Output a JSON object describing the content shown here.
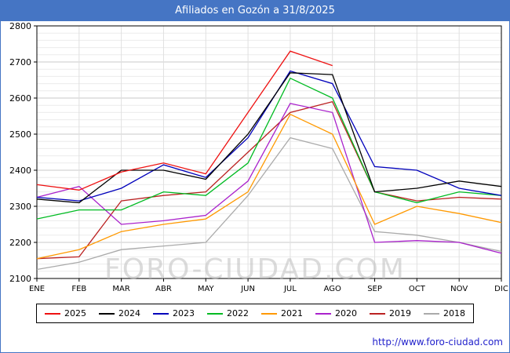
{
  "header": {
    "title": "Afiliados en Gozón a 31/8/2025"
  },
  "watermark": "FORO-CIUDAD.COM",
  "footer": {
    "url": "http://www.foro-ciudad.com"
  },
  "colors": {
    "titlebar": "#4575c4",
    "frame": "#4575c4",
    "url_link": "#2222cc",
    "grid_major": "#c8c8c8",
    "grid_minor": "#ebebeb",
    "axis": "#000000"
  },
  "chart_data": {
    "type": "line",
    "title": "Afiliados en Gozón a 31/8/2025",
    "categories": [
      "ENE",
      "FEB",
      "MAR",
      "ABR",
      "MAY",
      "JUN",
      "JUL",
      "AGO",
      "SEP",
      "OCT",
      "NOV",
      "DIC"
    ],
    "ylim": [
      2100,
      2800
    ],
    "ytick_step": 100,
    "grid": true,
    "legend_position": "bottom",
    "xlabel": "",
    "ylabel": "",
    "series": [
      {
        "name": "2025",
        "color": "#ee1111",
        "values": [
          2360,
          2345,
          2395,
          2420,
          2390,
          2560,
          2730,
          2690,
          null,
          null,
          null,
          null
        ]
      },
      {
        "name": "2024",
        "color": "#000000",
        "values": [
          2320,
          2310,
          2400,
          2400,
          2375,
          2500,
          2670,
          2665,
          2340,
          2350,
          2370,
          2355
        ]
      },
      {
        "name": "2023",
        "color": "#0000bb",
        "values": [
          2325,
          2315,
          2350,
          2415,
          2380,
          2490,
          2675,
          2640,
          2410,
          2400,
          2350,
          2330
        ]
      },
      {
        "name": "2022",
        "color": "#00bb22",
        "values": [
          2265,
          2290,
          2290,
          2340,
          2330,
          2420,
          2655,
          2600,
          2340,
          2310,
          2340,
          2330
        ]
      },
      {
        "name": "2021",
        "color": "#ff9900",
        "values": [
          2155,
          2180,
          2230,
          2250,
          2265,
          2340,
          2555,
          2500,
          2250,
          2300,
          2280,
          2255
        ]
      },
      {
        "name": "2020",
        "color": "#aa22cc",
        "values": [
          2325,
          2355,
          2250,
          2260,
          2275,
          2370,
          2585,
          2560,
          2200,
          2205,
          2200,
          2170
        ]
      },
      {
        "name": "2019",
        "color": "#bb2222",
        "values": [
          2155,
          2160,
          2315,
          2330,
          2340,
          2450,
          2560,
          2590,
          2340,
          2315,
          2325,
          2320
        ]
      },
      {
        "name": "2018",
        "color": "#aaaaaa",
        "values": [
          2125,
          2145,
          2180,
          2190,
          2200,
          2330,
          2490,
          2460,
          2230,
          2220,
          2200,
          2175
        ]
      }
    ]
  }
}
